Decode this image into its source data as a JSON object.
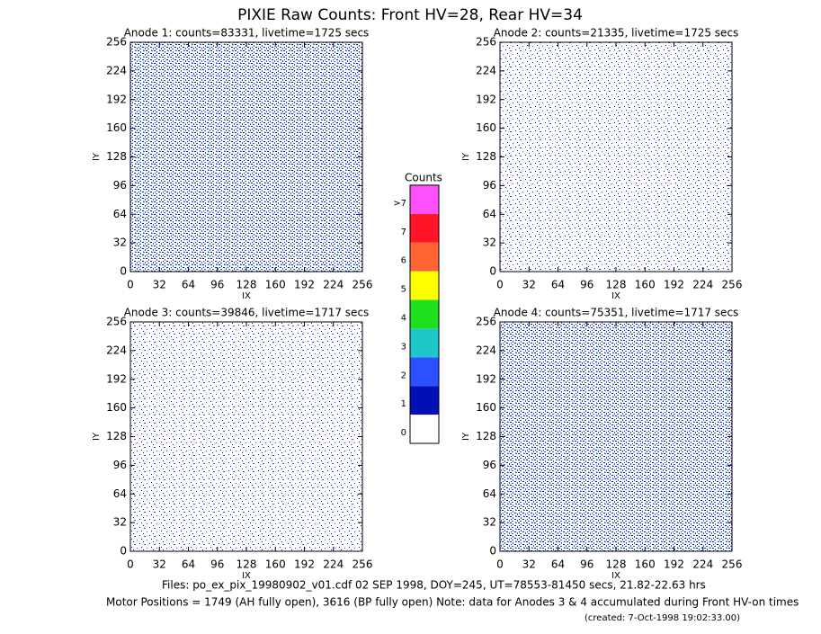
{
  "title": "PIXIE Raw Counts:  Front HV=28, Rear HV=34",
  "chart_data": [
    {
      "type": "heatmap",
      "title": "Anode 1: counts=83331, livetime=1725 secs",
      "xlabel": "IX",
      "ylabel": "IY",
      "xlim": [
        0,
        256
      ],
      "ylim": [
        0,
        256
      ],
      "xticks": [
        0,
        32,
        64,
        96,
        128,
        160,
        192,
        224,
        256
      ],
      "yticks": [
        0,
        32,
        64,
        96,
        128,
        160,
        192,
        224,
        256
      ]
    },
    {
      "type": "heatmap",
      "title": "Anode 2: counts=21335, livetime=1725 secs",
      "xlabel": "IX",
      "ylabel": "IY",
      "xlim": [
        0,
        256
      ],
      "ylim": [
        0,
        256
      ],
      "xticks": [
        0,
        32,
        64,
        96,
        128,
        160,
        192,
        224,
        256
      ],
      "yticks": [
        0,
        32,
        64,
        96,
        128,
        160,
        192,
        224,
        256
      ]
    },
    {
      "type": "heatmap",
      "title": "Anode 3: counts=39846, livetime=1717 secs",
      "xlabel": "IX",
      "ylabel": "IY",
      "xlim": [
        0,
        256
      ],
      "ylim": [
        0,
        256
      ],
      "xticks": [
        0,
        32,
        64,
        96,
        128,
        160,
        192,
        224,
        256
      ],
      "yticks": [
        0,
        32,
        64,
        96,
        128,
        160,
        192,
        224,
        256
      ]
    },
    {
      "type": "heatmap",
      "title": "Anode 4: counts=75351, livetime=1717 secs",
      "xlabel": "IX",
      "ylabel": "IY",
      "xlim": [
        0,
        256
      ],
      "ylim": [
        0,
        256
      ],
      "xticks": [
        0,
        32,
        64,
        96,
        128,
        160,
        192,
        224,
        256
      ],
      "yticks": [
        0,
        32,
        64,
        96,
        128,
        160,
        192,
        224,
        256
      ]
    }
  ],
  "colorbar": {
    "title": "Counts",
    "categories": [
      "0",
      "1",
      "2",
      "3",
      "4",
      "5",
      "6",
      "7",
      ">7"
    ],
    "colors": [
      "#ffffff",
      "#0010b4",
      "#2c50ff",
      "#1ec8c8",
      "#1ee01e",
      "#ffff00",
      "#ff6432",
      "#ff1428",
      "#ff50ff"
    ]
  },
  "footer": {
    "files": "Files: po_ex_pix_19980902_v01.cdf    02 SEP 1998, DOY=245, UT=78553-81450 secs, 21.82-22.63 hrs",
    "motor": "Motor Positions = 1749 (AH fully open), 3616 (BP fully open)    Note: data for Anodes 3 & 4 accumulated during Front HV-on times",
    "created": "(created:  7-Oct-1998 19:02:33.00)"
  }
}
